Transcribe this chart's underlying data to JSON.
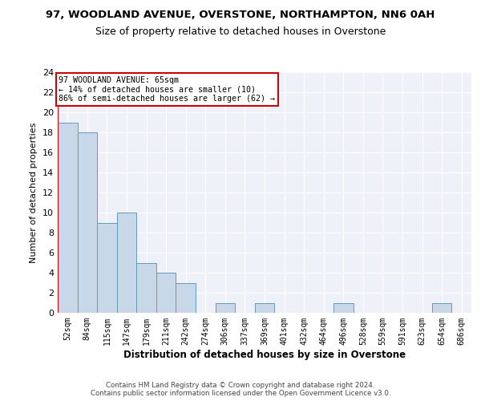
{
  "title": "97, WOODLAND AVENUE, OVERSTONE, NORTHAMPTON, NN6 0AH",
  "subtitle": "Size of property relative to detached houses in Overstone",
  "xlabel": "Distribution of detached houses by size in Overstone",
  "ylabel": "Number of detached properties",
  "categories": [
    "52sqm",
    "84sqm",
    "115sqm",
    "147sqm",
    "179sqm",
    "211sqm",
    "242sqm",
    "274sqm",
    "306sqm",
    "337sqm",
    "369sqm",
    "401sqm",
    "432sqm",
    "464sqm",
    "496sqm",
    "528sqm",
    "559sqm",
    "591sqm",
    "623sqm",
    "654sqm",
    "686sqm"
  ],
  "values": [
    19,
    18,
    9,
    10,
    5,
    4,
    3,
    0,
    1,
    0,
    1,
    0,
    0,
    0,
    1,
    0,
    0,
    0,
    0,
    1,
    0
  ],
  "bar_color": "#c8d8e8",
  "bar_edge_color": "#6699bb",
  "ylim": [
    0,
    24
  ],
  "yticks": [
    0,
    2,
    4,
    6,
    8,
    10,
    12,
    14,
    16,
    18,
    20,
    22,
    24
  ],
  "annotation_line1": "97 WOODLAND AVENUE: 65sqm",
  "annotation_line2": "← 14% of detached houses are smaller (10)",
  "annotation_line3": "86% of semi-detached houses are larger (62) →",
  "red_line_color": "#cc0000",
  "annotation_box_edge": "#cc0000",
  "background_color": "#eef2f8",
  "footer_line1": "Contains HM Land Registry data © Crown copyright and database right 2024.",
  "footer_line2": "Contains public sector information licensed under the Open Government Licence v3.0."
}
